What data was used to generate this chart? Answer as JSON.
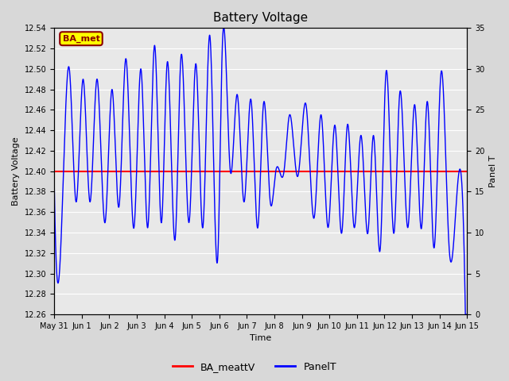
{
  "title": "Battery Voltage",
  "xlabel": "Time",
  "ylabel_left": "Battery Voltage",
  "ylabel_right": "Panel T",
  "ylim_left": [
    12.26,
    12.54
  ],
  "ylim_right": [
    0,
    35
  ],
  "yticks_left": [
    12.26,
    12.28,
    12.3,
    12.32,
    12.34,
    12.36,
    12.38,
    12.4,
    12.42,
    12.44,
    12.46,
    12.48,
    12.5,
    12.52,
    12.54
  ],
  "yticks_right": [
    0,
    5,
    10,
    15,
    20,
    25,
    30,
    35
  ],
  "xtick_labels": [
    "May 31",
    "Jun 1",
    "Jun 2",
    "Jun 3",
    "Jun 4",
    "Jun 5",
    "Jun 6",
    "Jun 7",
    "Jun 8",
    "Jun 9",
    "Jun 10",
    "Jun 11",
    "Jun 12",
    "Jun 13",
    "Jun 14",
    "Jun 15"
  ],
  "batt_v_value": 12.4,
  "bg_color": "#d8d8d8",
  "plot_bg_color": "#e8e8e8",
  "grid_color": "#ffffff",
  "annotation_text": "BA_met",
  "annotation_bg": "#ffff00",
  "annotation_border": "#8B0000",
  "annotation_text_color": "#8B0000",
  "peak_times": [
    0.0,
    0.55,
    1.05,
    1.55,
    2.1,
    2.6,
    3.15,
    3.65,
    4.1,
    4.6,
    5.15,
    5.65,
    6.1,
    6.65,
    7.15,
    7.6,
    8.05,
    8.55,
    9.15,
    9.7,
    10.2,
    10.65,
    11.15,
    11.6,
    12.05,
    12.55,
    13.1,
    13.55,
    14.05,
    14.6
  ],
  "peak_vals": [
    12.39,
    12.5,
    12.49,
    12.49,
    12.48,
    12.51,
    12.5,
    12.523,
    12.505,
    12.51,
    12.505,
    12.533,
    12.515,
    12.475,
    12.47,
    12.465,
    12.4,
    12.455,
    12.465,
    12.455,
    12.445,
    12.445,
    12.435,
    12.435,
    12.495,
    12.475,
    12.465,
    12.468,
    12.495,
    12.365
  ],
  "trough_times": [
    0.3,
    0.8,
    1.3,
    1.85,
    2.35,
    2.9,
    3.4,
    3.9,
    4.4,
    4.9,
    5.4,
    5.95,
    6.4,
    6.9,
    7.4,
    7.85,
    8.35,
    8.85,
    9.45,
    9.95,
    10.45,
    10.9,
    11.4,
    11.85,
    12.35,
    12.85,
    13.35,
    13.8,
    14.35,
    14.85
  ],
  "trough_vals": [
    12.37,
    12.37,
    12.37,
    12.35,
    12.365,
    12.345,
    12.345,
    12.35,
    12.335,
    12.35,
    12.345,
    12.32,
    12.4,
    12.37,
    12.345,
    12.37,
    12.4,
    12.395,
    12.355,
    12.345,
    12.34,
    12.345,
    12.34,
    12.325,
    12.34,
    12.345,
    12.345,
    12.325,
    12.325,
    12.365
  ]
}
